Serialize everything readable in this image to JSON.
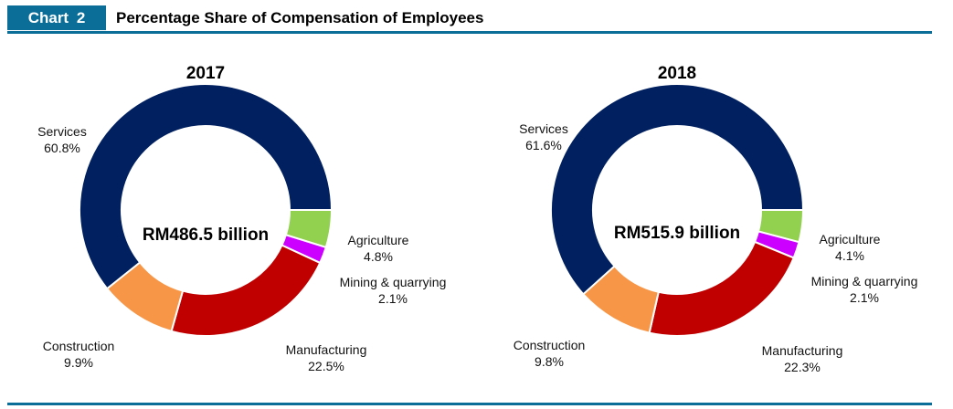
{
  "header": {
    "badge": "Chart  2",
    "title": "Percentage Share of Compensation of Employees"
  },
  "colors": {
    "accent": "#0b6e99",
    "Services": "#002060",
    "Agriculture": "#92d050",
    "Mining & quarrying": "#cc00ff",
    "Manufacturing": "#c00000",
    "Construction": "#f79646"
  },
  "chart_data": [
    {
      "type": "pie",
      "style": "donut",
      "title": "2017",
      "center_label": "RM486.5 billion",
      "slices": [
        {
          "name": "Services",
          "value": 60.8,
          "label": "60.8%"
        },
        {
          "name": "Agriculture",
          "value": 4.8,
          "label": "4.8%"
        },
        {
          "name": "Mining & quarrying",
          "value": 2.1,
          "label": "2.1%"
        },
        {
          "name": "Manufacturing",
          "value": 22.5,
          "label": "22.5%"
        },
        {
          "name": "Construction",
          "value": 9.9,
          "label": "9.9%"
        }
      ]
    },
    {
      "type": "pie",
      "style": "donut",
      "title": "2018",
      "center_label": "RM515.9 billion",
      "slices": [
        {
          "name": "Services",
          "value": 61.6,
          "label": "61.6%"
        },
        {
          "name": "Agriculture",
          "value": 4.1,
          "label": "4.1%"
        },
        {
          "name": "Mining & quarrying",
          "value": 2.1,
          "label": "2.1%"
        },
        {
          "name": "Manufacturing",
          "value": 22.3,
          "label": "22.3%"
        },
        {
          "name": "Construction",
          "value": 9.8,
          "label": "9.8%"
        }
      ]
    }
  ]
}
